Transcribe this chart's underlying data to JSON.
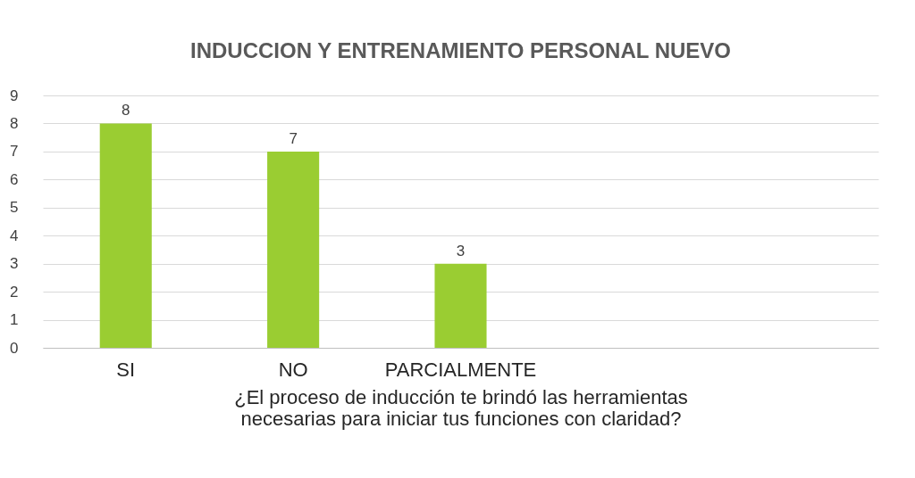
{
  "chart_data": {
    "type": "bar",
    "title": "INDUCCION Y ENTRENAMIENTO PERSONAL NUEVO",
    "xlabel": "¿El proceso de inducción te brindó las herramientas necesarias para iniciar tus funciones con claridad?",
    "categories": [
      "SI",
      "NO",
      "PARCIALMENTE",
      null,
      null
    ],
    "values": [
      8,
      7,
      3,
      null,
      null
    ],
    "color": "#9acd32",
    "ylim": [
      0,
      9
    ],
    "yticks": [
      0,
      1,
      2,
      3,
      4,
      5,
      6,
      7,
      8,
      9
    ],
    "grid": "y",
    "data_labels": true
  }
}
